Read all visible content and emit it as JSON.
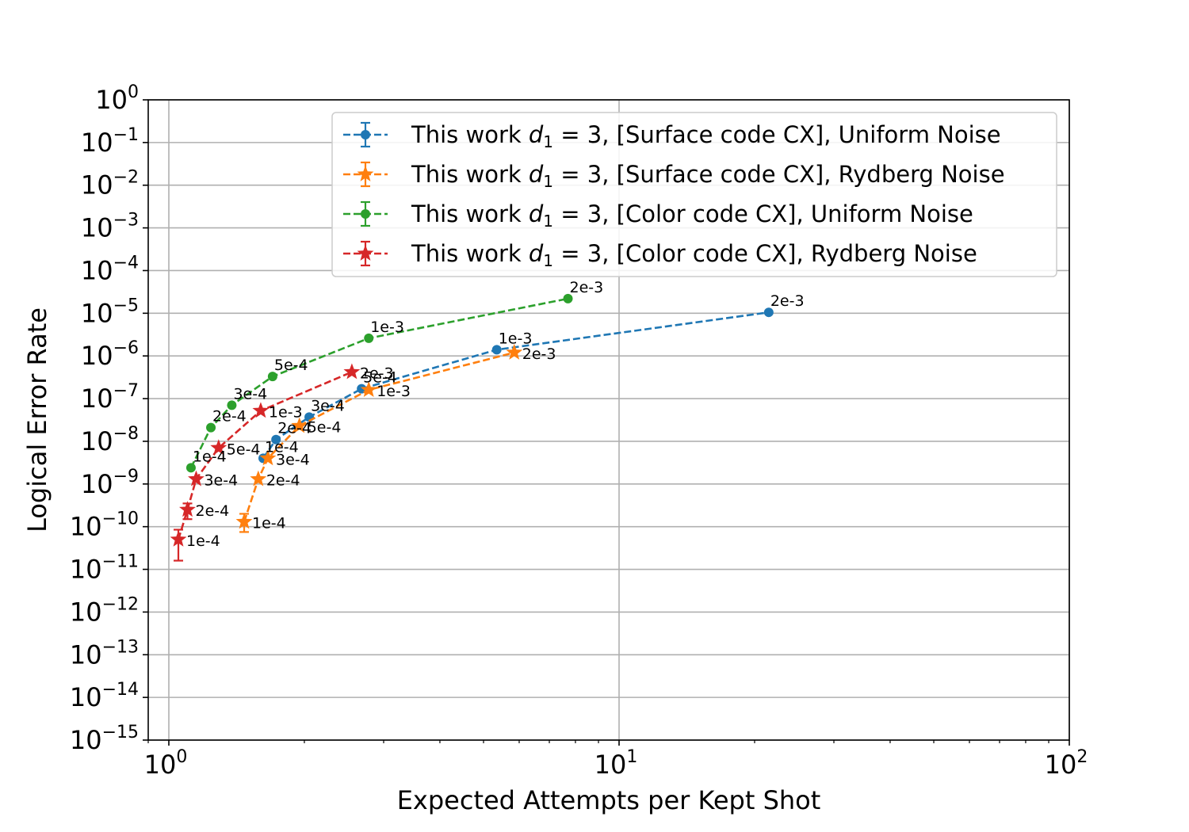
{
  "chart_data": {
    "type": "line",
    "xlabel": "Expected Attempts per Kept Shot",
    "ylabel": "Logical Error Rate",
    "x_scale": "log",
    "y_scale": "log",
    "xlim": [
      0.9,
      100
    ],
    "ylim": [
      1e-15,
      1
    ],
    "x_ticks": [
      {
        "value": 1,
        "base": "10",
        "exp": "0"
      },
      {
        "value": 10,
        "base": "10",
        "exp": "1"
      },
      {
        "value": 100,
        "base": "10",
        "exp": "2"
      }
    ],
    "y_ticks": [
      {
        "value": 1,
        "base": "10",
        "exp": "0"
      },
      {
        "value": 0.1,
        "base": "10",
        "exp": "−1"
      },
      {
        "value": 0.01,
        "base": "10",
        "exp": "−2"
      },
      {
        "value": 0.001,
        "base": "10",
        "exp": "−3"
      },
      {
        "value": 0.0001,
        "base": "10",
        "exp": "−4"
      },
      {
        "value": 1e-05,
        "base": "10",
        "exp": "−5"
      },
      {
        "value": 1e-06,
        "base": "10",
        "exp": "−6"
      },
      {
        "value": 1e-07,
        "base": "10",
        "exp": "−7"
      },
      {
        "value": 1e-08,
        "base": "10",
        "exp": "−8"
      },
      {
        "value": 1e-09,
        "base": "10",
        "exp": "−9"
      },
      {
        "value": 1e-10,
        "base": "10",
        "exp": "−10"
      },
      {
        "value": 1e-11,
        "base": "10",
        "exp": "−11"
      },
      {
        "value": 1e-12,
        "base": "10",
        "exp": "−12"
      },
      {
        "value": 1e-13,
        "base": "10",
        "exp": "−13"
      },
      {
        "value": 1e-14,
        "base": "10",
        "exp": "−14"
      },
      {
        "value": 1e-15,
        "base": "10",
        "exp": "−15"
      }
    ],
    "grid": true,
    "legend_position": "top-right",
    "series": [
      {
        "name": "This work d₁ = 3, [Surface code CX], Uniform Noise",
        "legend_prefix": "This work ",
        "legend_suffix": ", [Surface code CX], Uniform Noise",
        "color": "#1f77b4",
        "marker": "circle",
        "points": [
          {
            "x": 1.62,
            "y": 4e-09,
            "label": "1e-4"
          },
          {
            "x": 1.73,
            "y": 1.1e-08,
            "label": "2e-4"
          },
          {
            "x": 2.05,
            "y": 3.7e-08,
            "label": "3e-4"
          },
          {
            "x": 2.68,
            "y": 1.7e-07,
            "label": "5e-4"
          },
          {
            "x": 5.35,
            "y": 1.4e-06,
            "label": "1e-3"
          },
          {
            "x": 21.5,
            "y": 1.05e-05,
            "label": "2e-3"
          }
        ]
      },
      {
        "name": "This work d₁ = 3, [Surface code CX], Rydberg Noise",
        "legend_prefix": "This work ",
        "legend_suffix": ", [Surface code CX], Rydberg Noise",
        "color": "#ff7f0e",
        "marker": "star",
        "points": [
          {
            "x": 1.47,
            "y": 1.3e-10,
            "err_low": 7.5e-11,
            "err_high": 2e-10,
            "label": "1e-4"
          },
          {
            "x": 1.58,
            "y": 1.3e-09,
            "label": "2e-4"
          },
          {
            "x": 1.66,
            "y": 4e-09,
            "label": "3e-4"
          },
          {
            "x": 1.95,
            "y": 2.3e-08,
            "label": "5e-4"
          },
          {
            "x": 2.78,
            "y": 1.6e-07,
            "label": "1e-3"
          },
          {
            "x": 5.85,
            "y": 1.2e-06,
            "label": "2e-3"
          }
        ]
      },
      {
        "name": "This work d₁ = 3, [Color code CX], Uniform Noise",
        "legend_prefix": "This work ",
        "legend_suffix": ", [Color code CX], Uniform Noise",
        "color": "#2ca02c",
        "marker": "circle",
        "points": [
          {
            "x": 1.12,
            "y": 2.4e-09,
            "label": "1e-4"
          },
          {
            "x": 1.24,
            "y": 2.1e-08,
            "label": "2e-4"
          },
          {
            "x": 1.38,
            "y": 7e-08,
            "label": "3e-4"
          },
          {
            "x": 1.7,
            "y": 3.3e-07,
            "label": "5e-4"
          },
          {
            "x": 2.78,
            "y": 2.6e-06,
            "label": "1e-3"
          },
          {
            "x": 7.7,
            "y": 2.2e-05,
            "label": "2e-3"
          }
        ]
      },
      {
        "name": "This work d₁ = 3, [Color code CX], Rydberg Noise",
        "legend_prefix": "This work ",
        "legend_suffix": ", [Color code CX], Rydberg Noise",
        "color": "#d62728",
        "marker": "star",
        "points": [
          {
            "x": 1.05,
            "y": 5e-11,
            "err_low": 1.6e-11,
            "err_high": 8.5e-11,
            "label": "1e-4"
          },
          {
            "x": 1.1,
            "y": 2.5e-10,
            "err_low": 1.5e-10,
            "err_high": 3.5e-10,
            "label": "2e-4"
          },
          {
            "x": 1.15,
            "y": 1.3e-09,
            "label": "3e-4"
          },
          {
            "x": 1.29,
            "y": 7e-09,
            "label": "5e-4"
          },
          {
            "x": 1.6,
            "y": 5.2e-08,
            "label": "1e-3"
          },
          {
            "x": 2.55,
            "y": 4.2e-07,
            "label": "2e-3"
          }
        ]
      }
    ]
  }
}
